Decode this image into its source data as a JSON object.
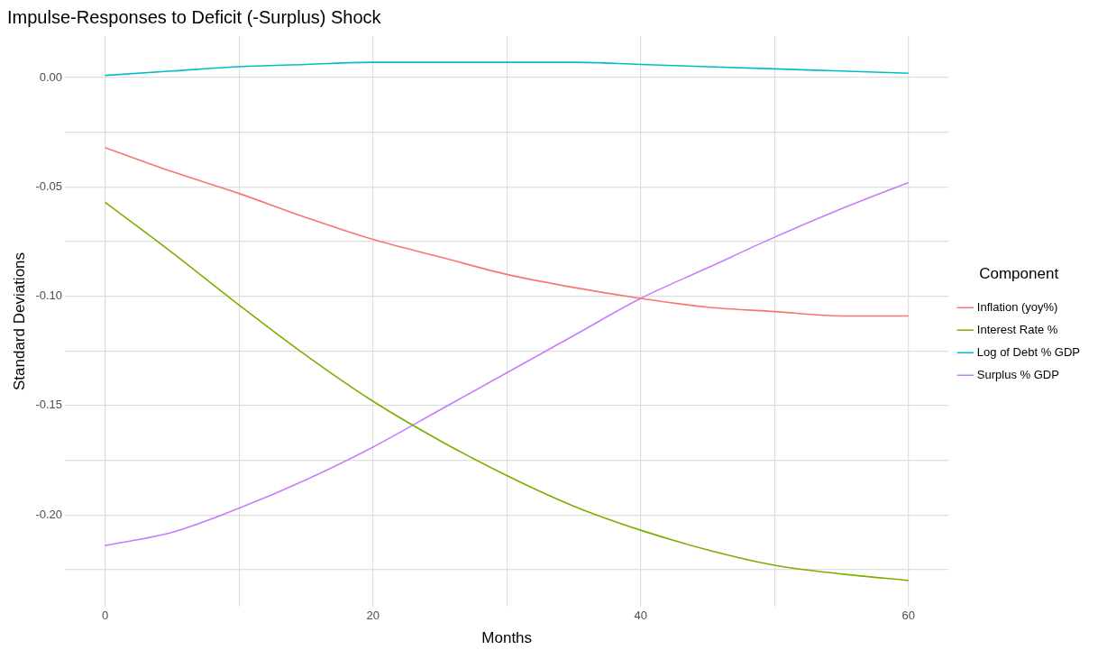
{
  "chart_data": {
    "type": "line",
    "title": "Impulse-Responses to Deficit (-Surplus) Shock",
    "xlabel": "Months",
    "ylabel": "Standard Deviations",
    "legend_title": "Component",
    "legend": "right",
    "grid": true,
    "marker": "none",
    "line_style": "solid",
    "x": [
      0,
      5,
      10,
      15,
      20,
      25,
      30,
      35,
      40,
      45,
      50,
      55,
      60
    ],
    "xlim": [
      -3,
      63
    ],
    "xticks": [
      0,
      {
        "value": 10,
        "label": null
      },
      20,
      {
        "value": 30,
        "label": null
      },
      40,
      {
        "value": 50,
        "label": null
      },
      60
    ],
    "ylim": [
      -0.242,
      0.019
    ],
    "yticks": [
      {
        "value": -0.225,
        "label": null
      },
      {
        "value": -0.2,
        "label": "-0.20"
      },
      {
        "value": -0.175,
        "label": null
      },
      {
        "value": -0.15,
        "label": "-0.15"
      },
      {
        "value": -0.125,
        "label": null
      },
      {
        "value": -0.1,
        "label": "-0.10"
      },
      {
        "value": -0.075,
        "label": null
      },
      {
        "value": -0.05,
        "label": "-0.05"
      },
      {
        "value": -0.025,
        "label": null
      },
      {
        "value": 0,
        "label": "0.00"
      }
    ],
    "series": [
      {
        "name": "Inflation (yoy%)",
        "color": "#f8766d",
        "values": [
          -0.032,
          -0.043,
          -0.053,
          -0.064,
          -0.074,
          -0.082,
          -0.09,
          -0.096,
          -0.101,
          -0.105,
          -0.107,
          -0.109,
          -0.109
        ]
      },
      {
        "name": "Interest Rate %",
        "color": "#7cae00",
        "values": [
          -0.057,
          -0.08,
          -0.104,
          -0.127,
          -0.148,
          -0.166,
          -0.182,
          -0.196,
          -0.207,
          -0.216,
          -0.223,
          -0.227,
          -0.23
        ]
      },
      {
        "name": "Log of Debt % GDP",
        "color": "#00bfc4",
        "values": [
          0.001,
          0.003,
          0.005,
          0.006,
          0.007,
          0.007,
          0.007,
          0.007,
          0.006,
          0.005,
          0.004,
          0.003,
          0.002
        ]
      },
      {
        "name": "Surplus % GDP",
        "color": "#c77cff",
        "values": [
          -0.214,
          -0.208,
          -0.197,
          -0.184,
          -0.169,
          -0.152,
          -0.135,
          -0.118,
          -0.101,
          -0.087,
          -0.073,
          -0.06,
          -0.048
        ]
      }
    ]
  }
}
